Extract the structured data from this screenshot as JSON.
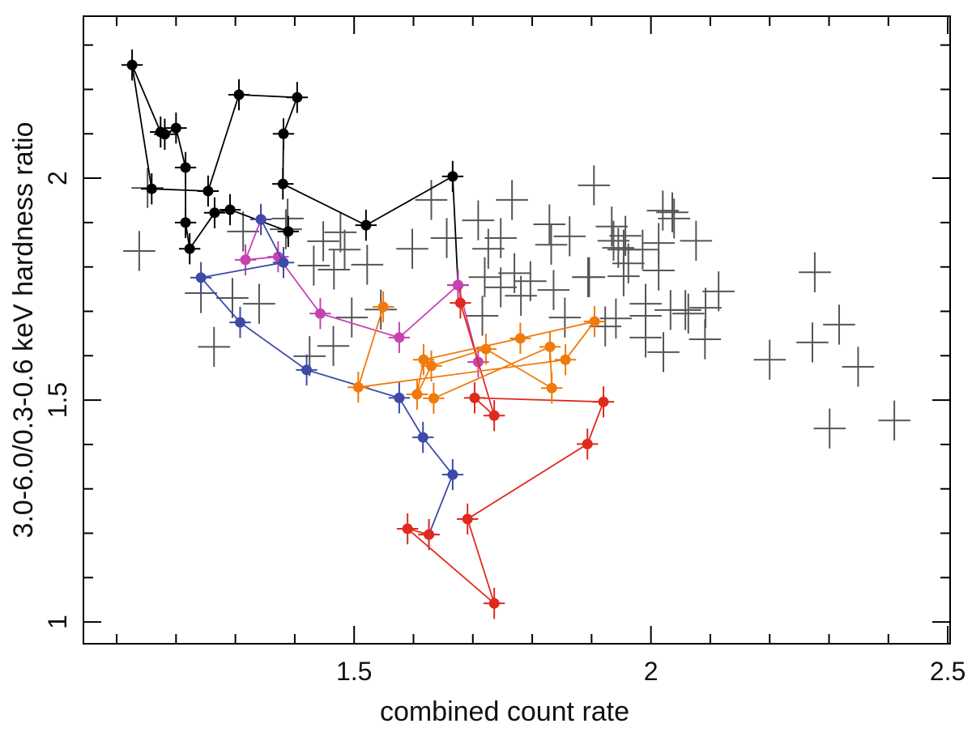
{
  "chart_data": {
    "type": "scatter",
    "title": "",
    "xlabel": "combined count rate",
    "ylabel": "3.0-6.0/0.3-0.6 keV hardness ratio",
    "xlim": [
      1.044,
      2.504
    ],
    "ylim": [
      0.951,
      2.365
    ],
    "x_major_ticks": [
      1.5,
      2,
      2.5
    ],
    "x_tick_labels": [
      "1.5",
      "2",
      "2.5"
    ],
    "x_minor_step": 0.1,
    "y_major_ticks": [
      1,
      1.5,
      2
    ],
    "y_tick_labels": [
      "1",
      "1.5",
      "2"
    ],
    "y_minor_step": 0.1,
    "grid": false,
    "legend": "none",
    "background_points": {
      "color": "#555555",
      "marker": "cross",
      "xerr": 0.027,
      "yerr": 0.045,
      "points": [
        [
          1.904,
          1.984
        ],
        [
          1.934,
          1.891
        ],
        [
          1.957,
          1.87
        ],
        [
          1.945,
          1.843
        ],
        [
          1.954,
          1.839
        ],
        [
          1.962,
          1.808
        ],
        [
          1.986,
          1.839
        ],
        [
          2.013,
          1.854
        ],
        [
          2.02,
          1.927
        ],
        [
          2.036,
          1.923
        ],
        [
          2.039,
          1.909
        ],
        [
          2.076,
          1.859
        ],
        [
          1.863,
          1.869
        ],
        [
          1.894,
          1.777
        ],
        [
          1.954,
          1.779
        ],
        [
          2.013,
          1.792
        ],
        [
          1.991,
          1.717
        ],
        [
          1.991,
          1.69
        ],
        [
          1.991,
          1.641
        ],
        [
          1.941,
          1.684
        ],
        [
          1.923,
          1.666
        ],
        [
          2.033,
          1.703
        ],
        [
          2.058,
          1.703
        ],
        [
          2.063,
          1.695
        ],
        [
          2.092,
          1.708
        ],
        [
          2.114,
          1.745
        ],
        [
          2.021,
          1.608
        ],
        [
          2.091,
          1.637
        ],
        [
          2.2,
          1.591
        ],
        [
          2.276,
          1.788
        ],
        [
          2.272,
          1.63
        ],
        [
          2.317,
          1.67
        ],
        [
          2.349,
          1.575
        ],
        [
          2.301,
          1.436
        ],
        [
          2.41,
          1.454
        ],
        [
          1.63,
          1.951
        ],
        [
          1.709,
          1.905
        ],
        [
          1.766,
          1.951
        ],
        [
          1.598,
          1.841
        ],
        [
          1.656,
          1.865
        ],
        [
          1.726,
          1.841
        ],
        [
          1.747,
          1.865
        ],
        [
          1.829,
          1.896
        ],
        [
          1.832,
          1.85
        ],
        [
          1.937,
          1.859
        ],
        [
          1.477,
          1.878
        ],
        [
          1.448,
          1.858
        ],
        [
          1.484,
          1.839
        ],
        [
          1.432,
          1.803
        ],
        [
          1.522,
          1.805
        ],
        [
          1.466,
          1.794
        ],
        [
          1.388,
          1.909
        ],
        [
          1.385,
          1.885
        ],
        [
          1.72,
          1.777
        ],
        [
          1.77,
          1.786
        ],
        [
          1.797,
          1.768
        ],
        [
          1.747,
          1.754
        ],
        [
          1.781,
          1.735
        ],
        [
          1.836,
          1.748
        ],
        [
          1.896,
          1.777
        ],
        [
          1.716,
          1.69
        ],
        [
          1.855,
          1.686
        ],
        [
          1.496,
          1.686
        ],
        [
          1.465,
          1.622
        ],
        [
          1.425,
          1.599
        ],
        [
          1.138,
          1.836
        ],
        [
          1.152,
          1.978
        ],
        [
          1.242,
          1.741
        ],
        [
          1.264,
          1.62
        ],
        [
          1.313,
          1.88
        ],
        [
          1.34,
          1.717
        ],
        [
          1.295,
          1.73
        ],
        [
          1.545,
          1.704
        ]
      ]
    },
    "series": [
      {
        "color": "#000000",
        "xerr": 0.018,
        "yerr": 0.035,
        "points": [
          [
            1.389,
            1.88
          ],
          [
            1.291,
            1.929
          ],
          [
            1.265,
            1.922
          ],
          [
            1.223,
            1.841
          ],
          [
            1.216,
            1.9
          ],
          [
            1.216,
            2.024
          ],
          [
            1.2,
            2.113
          ],
          [
            1.181,
            2.099
          ],
          [
            1.174,
            2.104
          ],
          [
            1.126,
            2.255
          ],
          [
            1.159,
            1.976
          ],
          [
            1.254,
            1.971
          ],
          [
            1.306,
            2.188
          ],
          [
            1.404,
            2.182
          ],
          [
            1.381,
            2.1
          ],
          [
            1.38,
            1.987
          ],
          [
            1.52,
            1.894
          ],
          [
            1.666,
            2.004
          ],
          [
            1.675,
            1.759
          ]
        ]
      },
      {
        "color": "#c443b0",
        "xerr": 0.018,
        "yerr": 0.035,
        "points": [
          [
            1.709,
            1.586
          ],
          [
            1.675,
            1.759
          ],
          [
            1.576,
            1.641
          ],
          [
            1.443,
            1.695
          ],
          [
            1.372,
            1.823
          ],
          [
            1.317,
            1.816
          ],
          [
            1.343,
            1.907
          ]
        ]
      },
      {
        "color": "#3d4aa8",
        "xerr": 0.018,
        "yerr": 0.035,
        "points": [
          [
            1.343,
            1.907
          ],
          [
            1.381,
            1.81
          ],
          [
            1.242,
            1.776
          ],
          [
            1.308,
            1.675
          ],
          [
            1.42,
            1.568
          ],
          [
            1.576,
            1.505
          ],
          [
            1.616,
            1.416
          ],
          [
            1.666,
            1.332
          ],
          [
            1.626,
            1.197
          ]
        ]
      },
      {
        "color": "#e0291e",
        "xerr": 0.018,
        "yerr": 0.035,
        "points": [
          [
            1.626,
            1.197
          ],
          [
            1.59,
            1.21
          ],
          [
            1.736,
            1.042
          ],
          [
            1.691,
            1.232
          ],
          [
            1.893,
            1.401
          ],
          [
            1.92,
            1.496
          ],
          [
            1.703,
            1.505
          ],
          [
            1.736,
            1.465
          ],
          [
            1.679,
            1.719
          ]
        ]
      },
      {
        "color": "#f07a0c",
        "xerr": 0.018,
        "yerr": 0.035,
        "points": [
          [
            1.549,
            1.71
          ],
          [
            1.507,
            1.529
          ],
          [
            1.856,
            1.591
          ],
          [
            1.905,
            1.677
          ],
          [
            1.78,
            1.639
          ],
          [
            1.617,
            1.591
          ],
          [
            1.606,
            1.513
          ],
          [
            1.63,
            1.577
          ],
          [
            1.722,
            1.615
          ],
          [
            1.833,
            1.527
          ],
          [
            1.83,
            1.62
          ],
          [
            1.634,
            1.504
          ]
        ]
      }
    ]
  }
}
